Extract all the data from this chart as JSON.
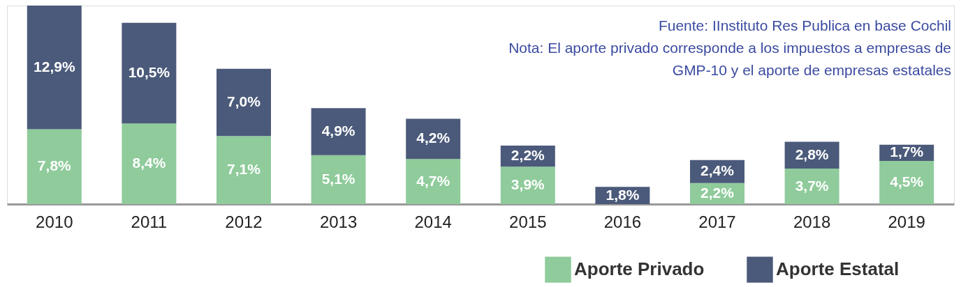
{
  "chart_data": {
    "type": "bar",
    "stacked": true,
    "categories": [
      "2010",
      "2011",
      "2012",
      "2013",
      "2014",
      "2015",
      "2016",
      "2017",
      "2018",
      "2019"
    ],
    "series": [
      {
        "name": "Aporte Privado",
        "color": "#8fcb9b",
        "values": [
          7.8,
          8.4,
          7.1,
          5.1,
          4.7,
          3.9,
          null,
          2.2,
          3.7,
          4.5
        ],
        "value_labels": [
          "7,8%",
          "8,4%",
          "7,1%",
          "5,1%",
          "4,7%",
          "3,9%",
          null,
          "2,2%",
          "3,7%",
          "4,5%"
        ]
      },
      {
        "name": "Aporte Estatal",
        "color": "#4b5a7a",
        "values": [
          12.9,
          10.5,
          7.0,
          4.9,
          4.2,
          2.2,
          1.8,
          2.4,
          2.8,
          1.7
        ],
        "value_labels": [
          "12,9%",
          "10,5%",
          "7,0%",
          "4,9%",
          "4,2%",
          "2,2%",
          "1,8%",
          "2,4%",
          "2,8%",
          "1,7%"
        ]
      }
    ],
    "legend": "bottom right",
    "grid": false,
    "annotations": [
      "Fuente: IInstituto Res Publica en base Cochil",
      "Nota: El aporte privado corresponde a los impuestos a empresas de",
      "GMP-10 y el aporte de empresas estatales"
    ]
  }
}
